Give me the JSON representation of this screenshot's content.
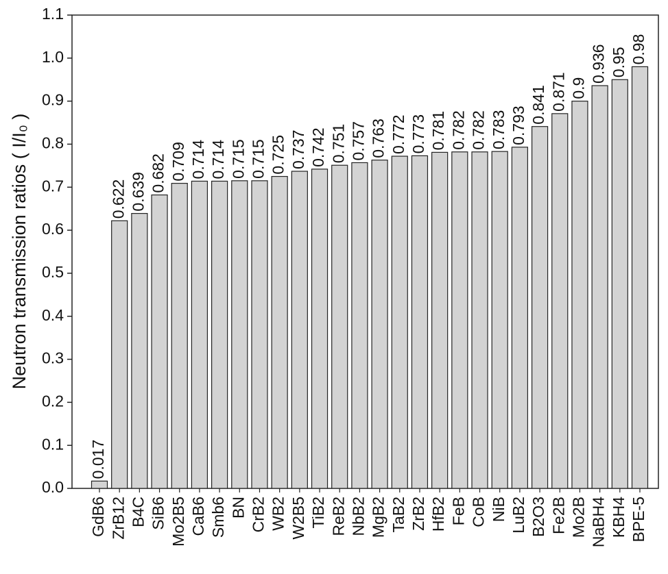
{
  "chart_data": {
    "type": "bar",
    "y_label": "Neutron transmission ratios ( I/I₀ )",
    "categories": [
      "GdB6",
      "ZrB12",
      "B4C",
      "SiB6",
      "Mo2B5",
      "CaB6",
      "Smb6",
      "BN",
      "CrB2",
      "WB2",
      "W2B5",
      "TiB2",
      "ReB2",
      "NbB2",
      "MgB2",
      "TaB2",
      "ZrB2",
      "HfB2",
      "FeB",
      "CoB",
      "NiB",
      "LuB2",
      "B2O3",
      "Fe2B",
      "Mo2B",
      "NaBH4",
      "KBH4",
      "BPE-5"
    ],
    "values": [
      0.017,
      0.622,
      0.639,
      0.682,
      0.709,
      0.714,
      0.714,
      0.715,
      0.715,
      0.725,
      0.737,
      0.742,
      0.751,
      0.757,
      0.763,
      0.772,
      0.773,
      0.781,
      0.782,
      0.782,
      0.783,
      0.793,
      0.841,
      0.871,
      0.9,
      0.936,
      0.95,
      0.98
    ],
    "color": "#d3d3d3",
    "ylim": [
      0,
      1.1
    ],
    "yticks": [
      {
        "value": 0,
        "label": "0.0"
      },
      0.1,
      0.2,
      0.3,
      0.4,
      0.5,
      0.6,
      0.7,
      0.8,
      0.9,
      {
        "value": 1,
        "label": "1.0"
      },
      1.1
    ],
    "grid": false
  }
}
